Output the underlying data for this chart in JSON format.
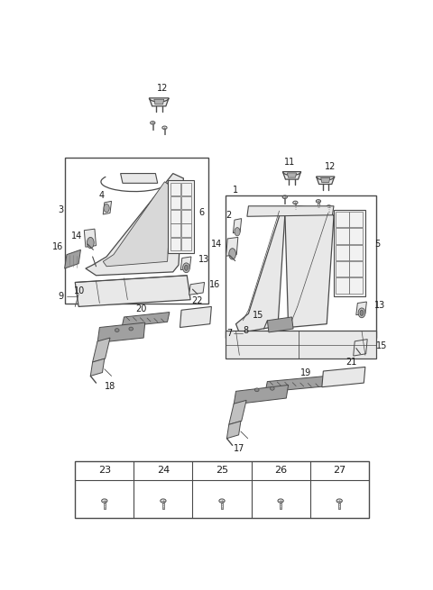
{
  "bg_color": "#ffffff",
  "line_color": "#4a4a4a",
  "label_color": "#1a1a1a",
  "fig_width": 4.8,
  "fig_height": 6.55,
  "dpi": 100,
  "table_labels": [
    "23",
    "24",
    "25",
    "26",
    "27"
  ],
  "seat_fill": "#e8e8e8",
  "grid_fill": "#f2f2f2",
  "bracket_fill": "#c0c0c0",
  "dark_fill": "#a0a0a0"
}
